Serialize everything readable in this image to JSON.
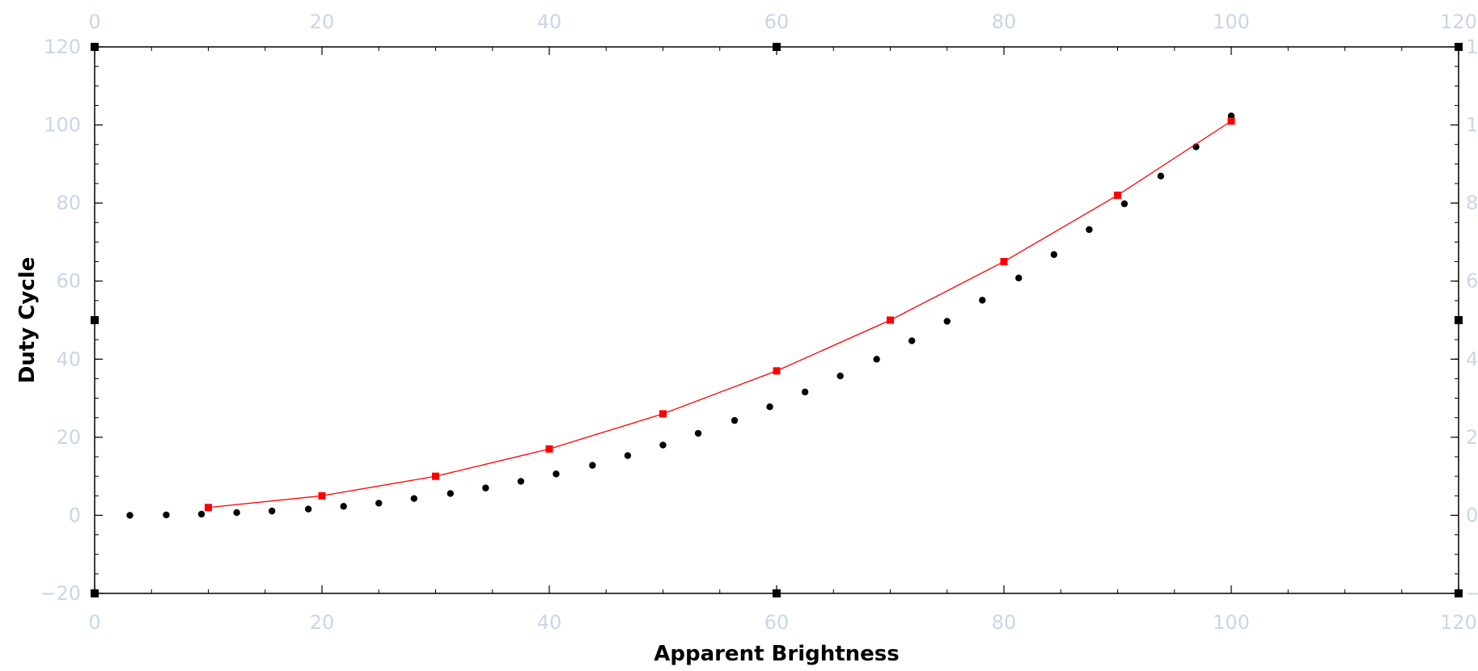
{
  "chart_data": {
    "type": "scatter",
    "xlabel": "Apparent Brightness",
    "ylabel": "Duty Cycle",
    "xlim": [
      0,
      120
    ],
    "ylim": [
      -20,
      120
    ],
    "x_ticks": [
      0,
      20,
      40,
      60,
      80,
      100,
      120
    ],
    "y_ticks": [
      -20,
      0,
      20,
      40,
      60,
      80,
      100,
      120
    ],
    "grid": false,
    "colors": {
      "line_series": "#ff0000",
      "dot_series": "#000000",
      "tick_labels": "#c9d6e8",
      "axis": "#000000"
    },
    "series": [
      {
        "style": "markers",
        "marker": "circle",
        "x": [
          3.1,
          6.3,
          9.4,
          12.5,
          15.6,
          18.8,
          21.9,
          25.0,
          28.1,
          31.3,
          34.4,
          37.5,
          40.6,
          43.8,
          46.9,
          50.0,
          53.1,
          56.3,
          59.4,
          62.5,
          65.6,
          68.8,
          71.9,
          75.0,
          78.1,
          81.3,
          84.4,
          87.5,
          90.6,
          93.8,
          96.9,
          100.0
        ],
        "y": [
          0.0,
          0.1,
          0.3,
          0.7,
          1.1,
          1.6,
          2.3,
          3.1,
          4.3,
          5.6,
          7.0,
          8.7,
          10.6,
          12.8,
          15.3,
          18.0,
          21.0,
          24.3,
          27.8,
          31.6,
          35.7,
          40.0,
          44.7,
          49.7,
          55.1,
          60.8,
          66.8,
          73.2,
          79.8,
          86.9,
          94.4,
          102.3
        ]
      },
      {
        "style": "line+markers",
        "marker": "square",
        "x": [
          10,
          20,
          30,
          40,
          50,
          60,
          70,
          80,
          90,
          100
        ],
        "y": [
          2,
          5,
          10,
          17,
          26,
          37,
          50,
          65,
          82,
          101
        ]
      }
    ]
  }
}
